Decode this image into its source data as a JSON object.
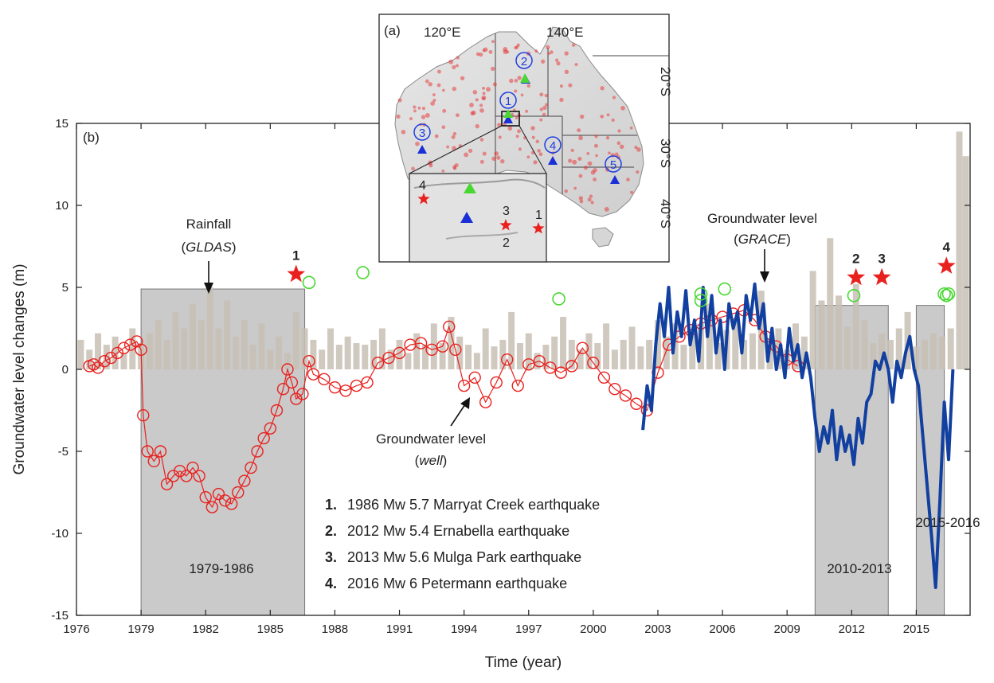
{
  "chart_data": {
    "type": "line",
    "panel_label": "(b)",
    "xlabel": "Time (year)",
    "ylabel": "Groundwater level changes (m)",
    "xlim": [
      1976,
      2017.5
    ],
    "ylim": [
      -15,
      15
    ],
    "x_ticks": [
      "1976",
      "1979",
      "1982",
      "1985",
      "1988",
      "1991",
      "1994",
      "1997",
      "2000",
      "2003",
      "2006",
      "2009",
      "2012",
      "2015"
    ],
    "y_ticks": [
      "-15",
      "-10",
      "-5",
      "0",
      "5",
      "10",
      "15"
    ],
    "colors": {
      "well": "#e8201e",
      "grace": "#1240a0",
      "rainfall": "#c8bfb5",
      "wells_circles": "#49d832",
      "earthquake_star": "#e8201e",
      "shade": "#b8b8b8"
    },
    "shaded_periods": [
      {
        "label": "1979-1986",
        "x0": 1979.0,
        "x1": 1986.6,
        "top": 4.9
      },
      {
        "label": "2010-2013",
        "x0": 2010.3,
        "x1": 2013.7,
        "top": 3.9
      },
      {
        "label": "2015-2016",
        "x0": 2015.0,
        "x1": 2016.3,
        "top": 3.9
      }
    ],
    "series": [
      {
        "name": "Groundwater level (well)",
        "style": "circles-line",
        "x": [
          1976.6,
          1976.8,
          1977.0,
          1977.3,
          1977.6,
          1977.9,
          1978.2,
          1978.5,
          1978.8,
          1979.0,
          1979.1,
          1979.3,
          1979.6,
          1979.9,
          1980.2,
          1980.5,
          1980.8,
          1981.1,
          1981.4,
          1981.7,
          1982.0,
          1982.3,
          1982.6,
          1982.9,
          1983.2,
          1983.5,
          1983.8,
          1984.1,
          1984.4,
          1984.7,
          1985.0,
          1985.3,
          1985.6,
          1985.8,
          1986.0,
          1986.2,
          1986.5,
          1986.8,
          1987.0,
          1987.5,
          1988.0,
          1988.5,
          1989.0,
          1989.5,
          1990.0,
          1990.5,
          1991.0,
          1991.5,
          1992.0,
          1992.5,
          1993.0,
          1993.3,
          1993.6,
          1994.0,
          1994.5,
          1995.0,
          1995.5,
          1996.0,
          1996.5,
          1997.0,
          1997.5,
          1998.0,
          1998.5,
          1999.0,
          1999.5,
          2000.0,
          2000.5,
          2001.0,
          2001.5,
          2002.0,
          2002.5,
          2003.0,
          2003.5,
          2004.0,
          2004.5,
          2005.0,
          2005.5,
          2006.0,
          2006.5,
          2007.0,
          2007.5,
          2008.0,
          2008.5,
          2009.0,
          2009.5
        ],
        "y": [
          0.2,
          0.3,
          0.1,
          0.5,
          0.7,
          1.0,
          1.3,
          1.5,
          1.7,
          1.2,
          -2.8,
          -5.0,
          -5.6,
          -5.0,
          -7.0,
          -6.5,
          -6.2,
          -6.5,
          -6.0,
          -6.5,
          -7.8,
          -8.4,
          -7.6,
          -8.0,
          -8.2,
          -7.5,
          -6.8,
          -6.0,
          -5.0,
          -4.2,
          -3.6,
          -2.5,
          -1.2,
          0.0,
          -0.8,
          -1.8,
          -1.5,
          0.5,
          -0.3,
          -0.6,
          -1.1,
          -1.3,
          -1.0,
          -0.8,
          0.4,
          0.7,
          1.0,
          1.5,
          1.6,
          1.2,
          1.4,
          2.6,
          1.2,
          -1.0,
          -0.5,
          -2.0,
          -0.8,
          0.6,
          -1.0,
          0.3,
          0.5,
          0.1,
          -0.2,
          0.2,
          1.3,
          0.4,
          -0.5,
          -1.2,
          -1.6,
          -2.1,
          -2.5,
          -0.2,
          1.5,
          2.0,
          2.4,
          2.8,
          3.0,
          3.2,
          3.4,
          3.6,
          3.0,
          2.0,
          1.4,
          0.6,
          0.2
        ]
      },
      {
        "name": "Groundwater level (GRACE)",
        "style": "line",
        "x": [
          2002.3,
          2002.5,
          2002.7,
          2002.9,
          2003.1,
          2003.3,
          2003.5,
          2003.7,
          2003.9,
          2004.1,
          2004.3,
          2004.5,
          2004.7,
          2004.9,
          2005.1,
          2005.3,
          2005.5,
          2005.7,
          2005.9,
          2006.1,
          2006.3,
          2006.5,
          2006.7,
          2006.9,
          2007.1,
          2007.3,
          2007.5,
          2007.7,
          2007.9,
          2008.1,
          2008.3,
          2008.5,
          2008.7,
          2008.9,
          2009.1,
          2009.3,
          2009.5,
          2009.7,
          2009.9,
          2010.1,
          2010.3,
          2010.5,
          2010.7,
          2010.9,
          2011.1,
          2011.3,
          2011.5,
          2011.7,
          2011.9,
          2012.1,
          2012.3,
          2012.5,
          2012.7,
          2012.9,
          2013.1,
          2013.3,
          2013.5,
          2013.7,
          2013.9,
          2014.1,
          2014.3,
          2014.5,
          2014.7,
          2014.9,
          2015.1,
          2015.3,
          2015.5,
          2015.7,
          2015.9,
          2016.1,
          2016.3,
          2016.5,
          2016.7
        ],
        "y": [
          -3.7,
          -1.0,
          -2.5,
          1.5,
          4.0,
          2.0,
          5.0,
          1.0,
          3.5,
          2.0,
          4.8,
          1.5,
          3.0,
          0.5,
          5.0,
          2.0,
          4.5,
          1.0,
          3.0,
          0.0,
          4.0,
          2.5,
          3.5,
          1.0,
          4.5,
          3.0,
          5.2,
          2.5,
          4.0,
          0.5,
          2.5,
          0.0,
          1.5,
          -0.5,
          2.5,
          0.5,
          1.5,
          -0.5,
          1.0,
          -0.5,
          -3.0,
          -5.0,
          -3.5,
          -4.5,
          -2.5,
          -5.5,
          -3.5,
          -5.0,
          -4.0,
          -5.8,
          -3.0,
          -4.5,
          -2.0,
          -1.5,
          0.5,
          0.0,
          1.0,
          0.0,
          -2.0,
          0.5,
          -0.5,
          1.0,
          2.0,
          0.0,
          -1.0,
          -4.0,
          -7.0,
          -10.0,
          -13.3,
          -8.0,
          -2.0,
          -5.5,
          0.0
        ]
      }
    ],
    "rainfall_bars": {
      "name": "Rainfall (GLDAS)",
      "x": [
        1976.2,
        1976.6,
        1977.0,
        1977.4,
        1977.8,
        1978.2,
        1978.6,
        1979.0,
        1979.4,
        1979.8,
        1980.2,
        1980.6,
        1981.0,
        1981.4,
        1981.8,
        1982.2,
        1982.6,
        1983.0,
        1983.4,
        1983.8,
        1984.2,
        1984.6,
        1985.0,
        1985.4,
        1985.8,
        1986.2,
        1986.6,
        1987.0,
        1987.4,
        1987.8,
        1988.2,
        1988.6,
        1989.0,
        1989.4,
        1989.8,
        1990.2,
        1990.6,
        1991.0,
        1991.4,
        1991.8,
        1992.2,
        1992.6,
        1993.0,
        1993.4,
        1993.8,
        1994.2,
        1994.6,
        1995.0,
        1995.4,
        1995.8,
        1996.2,
        1996.6,
        1997.0,
        1997.4,
        1997.8,
        1998.2,
        1998.6,
        1999.0,
        1999.4,
        1999.8,
        2000.2,
        2000.6,
        2001.0,
        2001.4,
        2001.8,
        2002.2,
        2002.6,
        2003.0,
        2003.4,
        2003.8,
        2004.2,
        2004.6,
        2005.0,
        2005.4,
        2005.8,
        2006.2,
        2006.6,
        2007.0,
        2007.4,
        2007.8,
        2008.2,
        2008.6,
        2009.0,
        2009.4,
        2009.8,
        2010.2,
        2010.6,
        2011.0,
        2011.4,
        2011.8,
        2012.2,
        2012.6,
        2013.0,
        2013.4,
        2013.8,
        2014.2,
        2014.6,
        2015.0,
        2015.4,
        2015.8,
        2016.2,
        2016.6,
        2017.0,
        2017.3
      ],
      "y": [
        1.8,
        1.2,
        2.2,
        1.5,
        2.0,
        1.0,
        2.5,
        1.6,
        2.2,
        3.0,
        1.8,
        3.5,
        2.5,
        4.0,
        3.0,
        5.0,
        2.5,
        4.2,
        2.0,
        3.0,
        1.5,
        2.8,
        1.2,
        2.0,
        1.0,
        3.5,
        2.5,
        1.8,
        1.2,
        2.5,
        1.5,
        2.0,
        1.6,
        1.5,
        1.8,
        2.5,
        1.2,
        1.8,
        1.0,
        2.2,
        1.5,
        2.8,
        1.6,
        3.2,
        2.0,
        1.5,
        1.0,
        2.5,
        1.4,
        1.8,
        3.5,
        1.6,
        2.2,
        1.0,
        1.5,
        2.0,
        3.2,
        1.8,
        1.2,
        2.2,
        1.6,
        2.8,
        1.2,
        1.8,
        2.6,
        1.4,
        1.8,
        3.0,
        2.0,
        2.8,
        1.5,
        2.2,
        2.8,
        4.0,
        1.6,
        2.4,
        3.0,
        1.8,
        2.2,
        4.8,
        1.5,
        2.5,
        1.2,
        2.8,
        2.0,
        6.0,
        4.2,
        8.0,
        4.5,
        2.6,
        5.2,
        3.0,
        1.6,
        2.2,
        1.8,
        2.5,
        3.5,
        1.4,
        1.8,
        2.2,
        2.0,
        2.5,
        14.5,
        13.0
      ]
    },
    "green_circles": {
      "x": [
        1986.8,
        1989.3,
        1998.4,
        2005.0,
        2005.0,
        2006.1,
        2012.1,
        2016.3,
        2016.4,
        2016.5
      ],
      "y": [
        5.3,
        5.9,
        4.3,
        4.6,
        4.2,
        4.9,
        4.5,
        4.6,
        4.5,
        4.6
      ]
    },
    "earthquake_markers": [
      {
        "label": "1",
        "x": 1986.2,
        "y": 5.8
      },
      {
        "label": "2",
        "x": 2012.2,
        "y": 5.6
      },
      {
        "label": "3",
        "x": 2013.4,
        "y": 5.6
      },
      {
        "label": "4",
        "x": 2016.4,
        "y": 6.3
      }
    ],
    "annotations": {
      "rainfall_line1": "Rainfall",
      "rainfall_line2_open": "(",
      "rainfall_line2_it": "GLDAS",
      "rainfall_line2_close": ")",
      "grace_line1": "Groundwater level",
      "grace_line2_open": "(",
      "grace_line2_it": "GRACE",
      "grace_line2_close": ")",
      "well_line1": "Groundwater level",
      "well_line2_open": "(",
      "well_line2_it": "well",
      "well_line2_close": ")"
    },
    "legend": [
      {
        "num": "1.",
        "text": "1986 Mw 5.7 Marryat Creek earthquake"
      },
      {
        "num": "2.",
        "text": "2012 Mw 5.4 Ernabella earthquake"
      },
      {
        "num": "3.",
        "text": "2013 Mw 5.6 Mulga Park earthquake"
      },
      {
        "num": "4.",
        "text": "2016 Mw 6 Petermann earthquake"
      }
    ],
    "inset": {
      "panel_label": "(a)",
      "lon_labels": [
        "120°E",
        "140°E"
      ],
      "lat_labels": [
        "20°S",
        "30°S",
        "40°S"
      ],
      "station_labels": [
        "1",
        "2",
        "3",
        "4",
        "5"
      ],
      "zoom_labels": [
        "4",
        "3",
        "1",
        "2"
      ]
    }
  }
}
